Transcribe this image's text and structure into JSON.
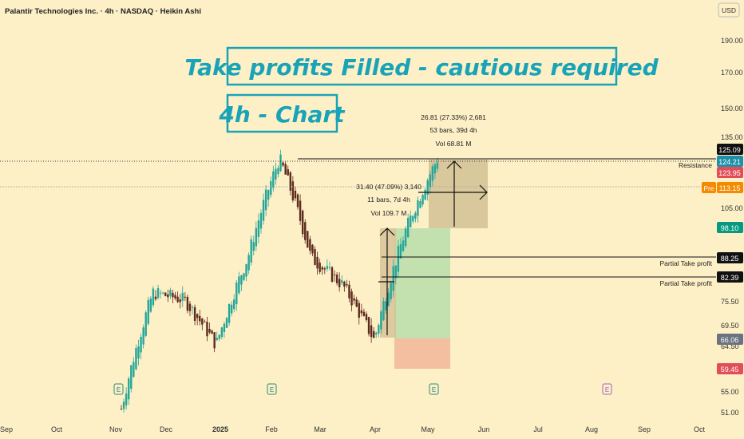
{
  "header": {
    "symbol_line": "Palantir Technologies Inc. · 4h · NASDAQ · Heikin Ashi",
    "currency": "USD"
  },
  "banner": {
    "title": "Take profits Filled - cautious required",
    "subtitle": "4h - Chart"
  },
  "measurements": [
    {
      "line1": "26.81 (27.33%) 2,681",
      "line2": "53 bars, 39d 4h",
      "line3": "Vol 68.81 M"
    },
    {
      "line1": "31.40 (47.09%) 3,140",
      "line2": "11 bars, 7d 4h",
      "line3": "Vol 109.7 M"
    }
  ],
  "levels": [
    {
      "label": "Resistance",
      "price": 125.09
    },
    {
      "label": "Partial Take profit",
      "price": 88.25
    },
    {
      "label": "Partial Take profit",
      "price": 82.39
    }
  ],
  "price_tags": {
    "t1": "125.09",
    "t2": "124.21",
    "t3": "123.95",
    "pre_label": "Pre",
    "pre": "113.15",
    "p98": "98.10",
    "p88": "88.25",
    "p82": "82.39",
    "p66": "66.06",
    "p59": "59.45"
  },
  "colors": {
    "background": "#fdf0c6",
    "up_candle": "#26a69a",
    "down_candle": "#5d2a1e",
    "banner": "#19a3b8",
    "profit_zone": "#b9deaa",
    "stop_zone": "#f3b99b",
    "measure_zone": "#d4c195"
  },
  "earnings_marker": "E",
  "chart_data": {
    "type": "candlestick",
    "title": "Palantir Technologies Inc. · 4h · NASDAQ · Heikin Ashi",
    "y_scale": "log",
    "ylim": [
      49.5,
      210
    ],
    "y_ticks": [
      190.0,
      170.0,
      150.0,
      135.0,
      105.0,
      75.5,
      69.5,
      64.5,
      55.0,
      51.0
    ],
    "x_labels": [
      "Sep",
      "Oct",
      "Nov",
      "Dec",
      "2025",
      "Feb",
      "Mar",
      "Apr",
      "May",
      "Jun",
      "Jul",
      "Aug",
      "Sep",
      "Oct"
    ],
    "series": [
      {
        "period": "Nov",
        "value": 52
      },
      {
        "period": "Dec",
        "value": 78
      },
      {
        "period": "2025",
        "value": 76
      },
      {
        "period": "Jan",
        "value": 65
      },
      {
        "period": "Feb",
        "value": 88
      },
      {
        "period": "Feb",
        "value": 124.5
      },
      {
        "period": "Mar",
        "value": 88
      },
      {
        "period": "Mar",
        "value": 80
      },
      {
        "period": "Apr",
        "value": 66
      },
      {
        "period": "Apr",
        "value": 97
      },
      {
        "period": "May",
        "value": 124.2
      }
    ]
  }
}
